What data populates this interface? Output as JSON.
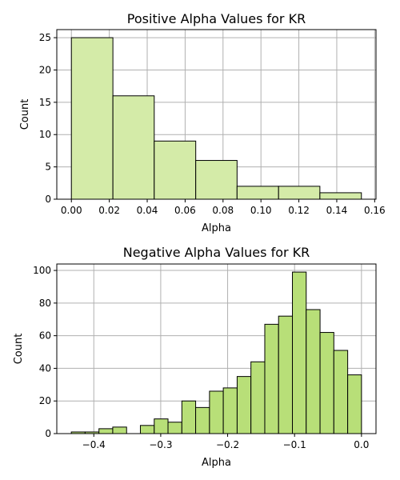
{
  "chart_data": [
    {
      "type": "bar",
      "title": "Positive Alpha Values for KR",
      "xlabel": "Alpha",
      "ylabel": "Count",
      "bar_color": "#d4eba8",
      "edge_color": "#000000",
      "grid": true,
      "xlim": [
        -0.0077,
        0.1607
      ],
      "ylim": [
        0,
        26.25
      ],
      "xticks": [
        0.0,
        0.02,
        0.04,
        0.06,
        0.08,
        0.1,
        0.12,
        0.14,
        0.16
      ],
      "xtick_labels": [
        "0.00",
        "0.02",
        "0.04",
        "0.06",
        "0.08",
        "0.10",
        "0.12",
        "0.14",
        "0.16"
      ],
      "yticks": [
        0,
        5,
        10,
        15,
        20,
        25
      ],
      "ytick_labels": [
        "0",
        "5",
        "10",
        "15",
        "20",
        "25"
      ],
      "bins": [
        {
          "x0": 0.0,
          "x1": 0.0219,
          "count": 25
        },
        {
          "x0": 0.0219,
          "x1": 0.0437,
          "count": 16
        },
        {
          "x0": 0.0437,
          "x1": 0.0656,
          "count": 9
        },
        {
          "x0": 0.0656,
          "x1": 0.0874,
          "count": 6
        },
        {
          "x0": 0.0874,
          "x1": 0.1093,
          "count": 2
        },
        {
          "x0": 0.1093,
          "x1": 0.1311,
          "count": 2
        },
        {
          "x0": 0.1311,
          "x1": 0.153,
          "count": 1
        }
      ]
    },
    {
      "type": "bar",
      "title": "Negative Alpha Values for KR",
      "xlabel": "Alpha",
      "ylabel": "Count",
      "bar_color": "#b8df78",
      "edge_color": "#000000",
      "grid": true,
      "xlim": [
        -0.4553,
        0.0217
      ],
      "ylim": [
        0,
        103.95
      ],
      "xticks": [
        -0.4,
        -0.3,
        -0.2,
        -0.1,
        0.0
      ],
      "xtick_labels": [
        "−0.4",
        "−0.3",
        "−0.2",
        "−0.1",
        "0.0"
      ],
      "yticks": [
        0,
        20,
        40,
        60,
        80,
        100
      ],
      "ytick_labels": [
        "0",
        "20",
        "40",
        "60",
        "80",
        "100"
      ],
      "bins": [
        {
          "x0": -0.4336,
          "x1": -0.413,
          "count": 1
        },
        {
          "x0": -0.413,
          "x1": -0.3923,
          "count": 1
        },
        {
          "x0": -0.3923,
          "x1": -0.3717,
          "count": 3
        },
        {
          "x0": -0.3717,
          "x1": -0.351,
          "count": 4
        },
        {
          "x0": -0.351,
          "x1": -0.3304,
          "count": 0
        },
        {
          "x0": -0.3304,
          "x1": -0.3097,
          "count": 5
        },
        {
          "x0": -0.3097,
          "x1": -0.2891,
          "count": 9
        },
        {
          "x0": -0.2891,
          "x1": -0.2684,
          "count": 7
        },
        {
          "x0": -0.2684,
          "x1": -0.2478,
          "count": 20
        },
        {
          "x0": -0.2478,
          "x1": -0.2271,
          "count": 16
        },
        {
          "x0": -0.2271,
          "x1": -0.2065,
          "count": 26
        },
        {
          "x0": -0.2065,
          "x1": -0.1858,
          "count": 28
        },
        {
          "x0": -0.1858,
          "x1": -0.1652,
          "count": 35
        },
        {
          "x0": -0.1652,
          "x1": -0.1445,
          "count": 44
        },
        {
          "x0": -0.1445,
          "x1": -0.1239,
          "count": 67
        },
        {
          "x0": -0.1239,
          "x1": -0.1032,
          "count": 72
        },
        {
          "x0": -0.1032,
          "x1": -0.0826,
          "count": 99
        },
        {
          "x0": -0.0826,
          "x1": -0.0619,
          "count": 76
        },
        {
          "x0": -0.0619,
          "x1": -0.0413,
          "count": 62
        },
        {
          "x0": -0.0413,
          "x1": -0.0206,
          "count": 51
        },
        {
          "x0": -0.0206,
          "x1": 0.0,
          "count": 36
        }
      ]
    }
  ]
}
